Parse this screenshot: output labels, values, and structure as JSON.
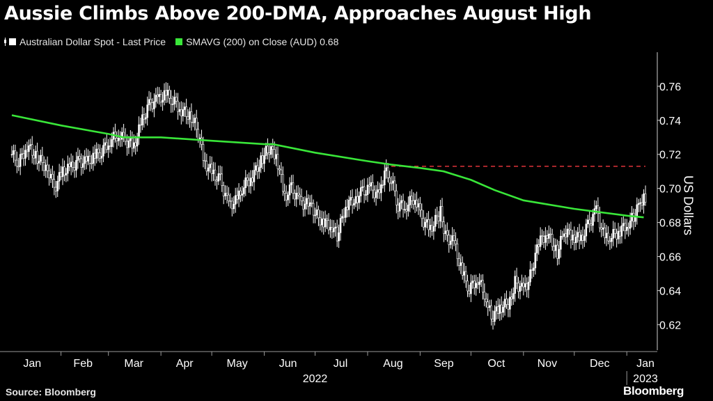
{
  "title": "Aussie Climbs Above 200-DMA, Approaches August High",
  "legend": [
    {
      "label": "Australian Dollar Spot - Last Price",
      "color": "#ffffff",
      "glyph": "candlestick-icon"
    },
    {
      "label": "SMAVG (200)  on Close (AUD)",
      "value": "0.68",
      "color": "#39e639",
      "glyph": "square-icon"
    }
  ],
  "source": "Source: Bloomberg",
  "logo": "Bloomberg",
  "chart_data": {
    "type": "line",
    "ylabel": "US Dollars",
    "y_axis_position": "right",
    "ylim": [
      0.605,
      0.78
    ],
    "yticks": [
      0.62,
      0.64,
      0.66,
      0.68,
      0.7,
      0.72,
      0.74,
      0.76
    ],
    "x_month_labels": [
      "Jan",
      "Feb",
      "Mar",
      "Apr",
      "May",
      "Jun",
      "Jul",
      "Aug",
      "Sep",
      "Oct",
      "Nov",
      "Dec",
      "Jan"
    ],
    "x_year_labels": [
      "2022",
      "2023"
    ],
    "reference_line": {
      "style": "dashed",
      "color": "#e0333a",
      "y": 0.713,
      "start": "2022-08-15",
      "end": "2023-01-12"
    },
    "series": [
      {
        "name": "Australian Dollar Spot - Last Price",
        "style": "candlestick",
        "color": "#ffffff",
        "points": [
          [
            "2022-01-03",
            0.72
          ],
          [
            "2022-01-07",
            0.715
          ],
          [
            "2022-01-12",
            0.725
          ],
          [
            "2022-01-18",
            0.718
          ],
          [
            "2022-01-24",
            0.712
          ],
          [
            "2022-01-28",
            0.7
          ],
          [
            "2022-02-02",
            0.71
          ],
          [
            "2022-02-07",
            0.712
          ],
          [
            "2022-02-11",
            0.716
          ],
          [
            "2022-02-16",
            0.715
          ],
          [
            "2022-02-21",
            0.719
          ],
          [
            "2022-02-25",
            0.722
          ],
          [
            "2022-03-02",
            0.728
          ],
          [
            "2022-03-07",
            0.732
          ],
          [
            "2022-03-11",
            0.728
          ],
          [
            "2022-03-16",
            0.725
          ],
          [
            "2022-03-21",
            0.74
          ],
          [
            "2022-03-25",
            0.749
          ],
          [
            "2022-03-30",
            0.752
          ],
          [
            "2022-04-04",
            0.755
          ],
          [
            "2022-04-08",
            0.752
          ],
          [
            "2022-04-13",
            0.746
          ],
          [
            "2022-04-19",
            0.742
          ],
          [
            "2022-04-22",
            0.736
          ],
          [
            "2022-04-27",
            0.715
          ],
          [
            "2022-05-02",
            0.708
          ],
          [
            "2022-05-06",
            0.705
          ],
          [
            "2022-05-11",
            0.69
          ],
          [
            "2022-05-16",
            0.693
          ],
          [
            "2022-05-20",
            0.702
          ],
          [
            "2022-05-25",
            0.707
          ],
          [
            "2022-05-31",
            0.718
          ],
          [
            "2022-06-03",
            0.723
          ],
          [
            "2022-06-08",
            0.72
          ],
          [
            "2022-06-13",
            0.695
          ],
          [
            "2022-06-17",
            0.7
          ],
          [
            "2022-06-22",
            0.692
          ],
          [
            "2022-06-28",
            0.69
          ],
          [
            "2022-07-01",
            0.685
          ],
          [
            "2022-07-06",
            0.68
          ],
          [
            "2022-07-11",
            0.678
          ],
          [
            "2022-07-14",
            0.672
          ],
          [
            "2022-07-19",
            0.69
          ],
          [
            "2022-07-25",
            0.694
          ],
          [
            "2022-07-29",
            0.698
          ],
          [
            "2022-08-03",
            0.7
          ],
          [
            "2022-08-08",
            0.695
          ],
          [
            "2022-08-11",
            0.71
          ],
          [
            "2022-08-15",
            0.705
          ],
          [
            "2022-08-19",
            0.69
          ],
          [
            "2022-08-24",
            0.69
          ],
          [
            "2022-08-29",
            0.695
          ],
          [
            "2022-09-02",
            0.682
          ],
          [
            "2022-09-07",
            0.676
          ],
          [
            "2022-09-13",
            0.686
          ],
          [
            "2022-09-16",
            0.672
          ],
          [
            "2022-09-21",
            0.668
          ],
          [
            "2022-09-26",
            0.65
          ],
          [
            "2022-09-30",
            0.641
          ],
          [
            "2022-10-05",
            0.647
          ],
          [
            "2022-10-10",
            0.636
          ],
          [
            "2022-10-13",
            0.624
          ],
          [
            "2022-10-18",
            0.63
          ],
          [
            "2022-10-24",
            0.633
          ],
          [
            "2022-10-27",
            0.645
          ],
          [
            "2022-11-01",
            0.64
          ],
          [
            "2022-11-04",
            0.645
          ],
          [
            "2022-11-10",
            0.668
          ],
          [
            "2022-11-15",
            0.674
          ],
          [
            "2022-11-21",
            0.662
          ],
          [
            "2022-11-25",
            0.675
          ],
          [
            "2022-11-30",
            0.672
          ],
          [
            "2022-12-05",
            0.67
          ],
          [
            "2022-12-09",
            0.678
          ],
          [
            "2022-12-14",
            0.687
          ],
          [
            "2022-12-19",
            0.67
          ],
          [
            "2022-12-23",
            0.672
          ],
          [
            "2022-12-28",
            0.675
          ],
          [
            "2023-01-02",
            0.68
          ],
          [
            "2023-01-05",
            0.683
          ],
          [
            "2023-01-09",
            0.692
          ],
          [
            "2023-01-11",
            0.695
          ]
        ]
      },
      {
        "name": "SMAVG (200)  on Close (AUD)",
        "style": "line",
        "color": "#39e639",
        "points": [
          [
            "2022-01-03",
            0.743
          ],
          [
            "2022-02-01",
            0.737
          ],
          [
            "2022-03-01",
            0.732
          ],
          [
            "2022-03-10",
            0.73
          ],
          [
            "2022-04-01",
            0.73
          ],
          [
            "2022-05-01",
            0.728
          ],
          [
            "2022-06-01",
            0.726
          ],
          [
            "2022-06-06",
            0.726
          ],
          [
            "2022-07-01",
            0.721
          ],
          [
            "2022-08-01",
            0.716
          ],
          [
            "2022-08-15",
            0.714
          ],
          [
            "2022-09-01",
            0.712
          ],
          [
            "2022-09-15",
            0.71
          ],
          [
            "2022-10-01",
            0.705
          ],
          [
            "2022-10-15",
            0.699
          ],
          [
            "2022-11-01",
            0.693
          ],
          [
            "2022-12-01",
            0.688
          ],
          [
            "2023-01-01",
            0.684
          ],
          [
            "2023-01-11",
            0.683
          ]
        ]
      }
    ]
  }
}
